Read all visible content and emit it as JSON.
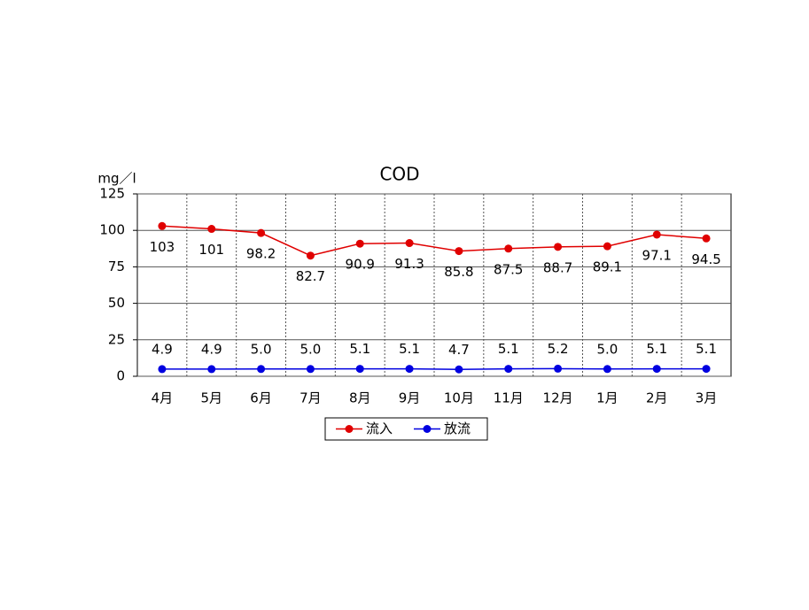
{
  "chart_data": {
    "type": "line",
    "title": "COD",
    "y_label": "mg／l",
    "categories": [
      "4月",
      "5月",
      "6月",
      "7月",
      "8月",
      "9月",
      "10月",
      "11月",
      "12月",
      "1月",
      "2月",
      "3月"
    ],
    "series": [
      {
        "name": "流入",
        "color": "#e00000",
        "values": [
          103,
          101,
          98.2,
          82.7,
          90.9,
          91.3,
          85.8,
          87.5,
          88.7,
          89.1,
          97.1,
          94.5
        ],
        "value_labels": [
          "103",
          "101",
          "98.2",
          "82.7",
          "90.9",
          "91.3",
          "85.8",
          "87.5",
          "88.7",
          "89.1",
          "97.1",
          "94.5"
        ]
      },
      {
        "name": "放流",
        "color": "#0000e0",
        "values": [
          4.9,
          4.9,
          5.0,
          5.0,
          5.1,
          5.1,
          4.7,
          5.1,
          5.2,
          5.0,
          5.1,
          5.1
        ],
        "value_labels": [
          "4.9",
          "4.9",
          "5.0",
          "5.0",
          "5.1",
          "5.1",
          "4.7",
          "5.1",
          "5.2",
          "5.0",
          "5.1",
          "5.1"
        ]
      }
    ],
    "ylim": [
      0,
      125
    ],
    "yticks": [
      0,
      25,
      50,
      75,
      100,
      125
    ],
    "grid": true,
    "legend": "bottom"
  }
}
